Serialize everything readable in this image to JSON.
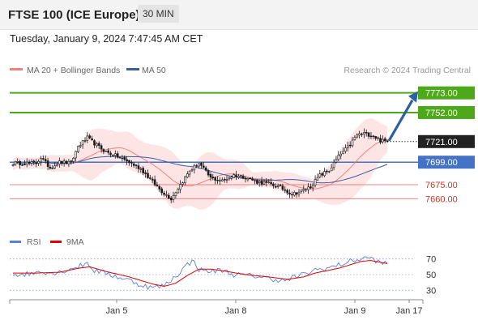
{
  "header": {
    "title": "FTSE 100 (ICE Europe)",
    "timeframe": "30 MIN",
    "datetime": "Tuesday, January 9, 2024 7:47:45 AM CET"
  },
  "legend": {
    "ma20_label": "MA 20 + Bollinger Bands",
    "ma50_label": "MA 50",
    "source": "Research © 2024 Trading Central",
    "rsi_label": "RSI",
    "ma9_label": "9MA"
  },
  "colors": {
    "candle": "#1a1a1a",
    "ma20": "#f08080",
    "bollinger_fill": "#fde5e5",
    "ma50": "#3a5fa0",
    "resistance": "#4ea91a",
    "pivot": "#4472c4",
    "support": "#f08080",
    "last_price": "#222222",
    "arrow": "#2e5f9e",
    "rsi": "#5b7fd6",
    "rsi_ma": "#e00000"
  },
  "chart_data": [
    {
      "type": "candlestick",
      "title": "FTSE 100 (ICE Europe)",
      "timeframe": "30 MIN",
      "ylim": [
        7630,
        7790
      ],
      "x_ticks": [
        "Jan 5",
        "Jan 8",
        "Jan 9",
        "Jan 17"
      ],
      "levels": [
        {
          "value": 7773.0,
          "label": "7773.00",
          "kind": "resistance"
        },
        {
          "value": 7752.0,
          "label": "7752.00",
          "kind": "resistance"
        },
        {
          "value": 7721.0,
          "label": "7721.00",
          "kind": "last"
        },
        {
          "value": 7699.0,
          "label": "7699.00",
          "kind": "pivot"
        },
        {
          "value": 7675.0,
          "label": "7675.00",
          "kind": "support"
        },
        {
          "value": 7660.0,
          "label": "7660.00",
          "kind": "support"
        }
      ],
      "close_anchors": [
        [
          0,
          7698
        ],
        [
          10,
          7698
        ],
        [
          12,
          7704
        ],
        [
          16,
          7693
        ],
        [
          20,
          7699
        ],
        [
          25,
          7698
        ],
        [
          28,
          7716
        ],
        [
          32,
          7725
        ],
        [
          36,
          7717
        ],
        [
          40,
          7710
        ],
        [
          45,
          7705
        ],
        [
          50,
          7699
        ],
        [
          55,
          7692
        ],
        [
          60,
          7678
        ],
        [
          64,
          7668
        ],
        [
          68,
          7660
        ],
        [
          72,
          7675
        ],
        [
          76,
          7690
        ],
        [
          80,
          7698
        ],
        [
          85,
          7682
        ],
        [
          90,
          7679
        ],
        [
          95,
          7685
        ],
        [
          100,
          7683
        ],
        [
          105,
          7678
        ],
        [
          110,
          7676
        ],
        [
          115,
          7672
        ],
        [
          118,
          7668
        ],
        [
          120,
          7665
        ],
        [
          124,
          7668
        ],
        [
          128,
          7673
        ],
        [
          132,
          7685
        ],
        [
          136,
          7690
        ],
        [
          140,
          7705
        ],
        [
          144,
          7715
        ],
        [
          148,
          7728
        ],
        [
          151,
          7730
        ],
        [
          155,
          7727
        ],
        [
          158,
          7722
        ],
        [
          161,
          7721
        ]
      ],
      "forecast": {
        "from": 7721.0,
        "to": 7773.0
      }
    },
    {
      "type": "line",
      "name": "RSI",
      "ylim": [
        20,
        80
      ],
      "y_ticks": [
        70,
        50,
        30
      ],
      "series": [
        {
          "name": "RSI",
          "anchors": [
            [
              0,
              50
            ],
            [
              8,
              51
            ],
            [
              12,
              55
            ],
            [
              16,
              52
            ],
            [
              20,
              53
            ],
            [
              25,
              58
            ],
            [
              28,
              60
            ],
            [
              32,
              65
            ],
            [
              35,
              55
            ],
            [
              40,
              52
            ],
            [
              45,
              47
            ],
            [
              50,
              43
            ],
            [
              55,
              37
            ],
            [
              60,
              33
            ],
            [
              65,
              36
            ],
            [
              70,
              48
            ],
            [
              75,
              63
            ],
            [
              78,
              68
            ],
            [
              80,
              56
            ],
            [
              85,
              54
            ],
            [
              90,
              56
            ],
            [
              95,
              50
            ],
            [
              100,
              49
            ],
            [
              105,
              48
            ],
            [
              110,
              45
            ],
            [
              115,
              43
            ],
            [
              118,
              42
            ],
            [
              120,
              46
            ],
            [
              125,
              50
            ],
            [
              130,
              56
            ],
            [
              135,
              58
            ],
            [
              140,
              62
            ],
            [
              145,
              67
            ],
            [
              150,
              70
            ],
            [
              153,
              72
            ],
            [
              156,
              68
            ],
            [
              158,
              64
            ],
            [
              161,
              65
            ]
          ]
        },
        {
          "name": "9MA",
          "anchors": [
            [
              0,
              52
            ],
            [
              10,
              52
            ],
            [
              20,
              53
            ],
            [
              28,
              58
            ],
            [
              33,
              60
            ],
            [
              40,
              54
            ],
            [
              50,
              47
            ],
            [
              60,
              38
            ],
            [
              65,
              35
            ],
            [
              70,
              39
            ],
            [
              75,
              49
            ],
            [
              80,
              57
            ],
            [
              85,
              57
            ],
            [
              90,
              55
            ],
            [
              100,
              50
            ],
            [
              110,
              47
            ],
            [
              118,
              44
            ],
            [
              125,
              47
            ],
            [
              130,
              52
            ],
            [
              140,
              58
            ],
            [
              150,
              67
            ],
            [
              154,
              68
            ],
            [
              161,
              64
            ]
          ]
        }
      ]
    }
  ]
}
